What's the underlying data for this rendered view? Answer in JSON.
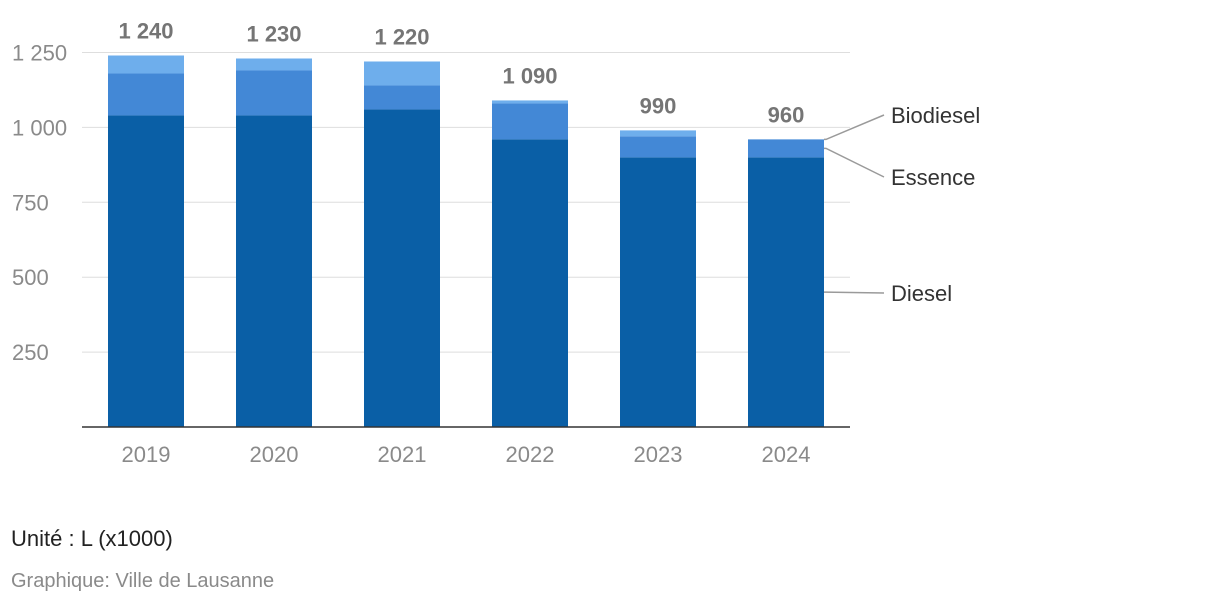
{
  "chart_data": {
    "type": "bar",
    "stacked": true,
    "categories": [
      "2019",
      "2020",
      "2021",
      "2022",
      "2023",
      "2024"
    ],
    "series": [
      {
        "name": "Diesel",
        "values": [
          1040,
          1040,
          1060,
          960,
          900,
          900
        ],
        "color": "#0a5fa6"
      },
      {
        "name": "Essence",
        "values": [
          140,
          150,
          80,
          120,
          70,
          60
        ],
        "color": "#4388d6"
      },
      {
        "name": "Biodiesel",
        "values": [
          60,
          40,
          80,
          10,
          20,
          0
        ],
        "color": "#6eaeec"
      }
    ],
    "totals": [
      "1 240",
      "1 230",
      "1 220",
      "1 090",
      "990",
      "960"
    ],
    "yticks": [
      {
        "value": 250,
        "label": "250"
      },
      {
        "value": 500,
        "label": "500"
      },
      {
        "value": 750,
        "label": "750"
      },
      {
        "value": 1000,
        "label": "1 000"
      },
      {
        "value": 1250,
        "label": "1 250"
      }
    ],
    "ylim": [
      0,
      1250
    ],
    "grid": true,
    "legend": "right, labels attached to last bar"
  },
  "notes": {
    "unit": "Unité : L (x1000)",
    "source": "Graphique: Ville de Lausanne"
  }
}
